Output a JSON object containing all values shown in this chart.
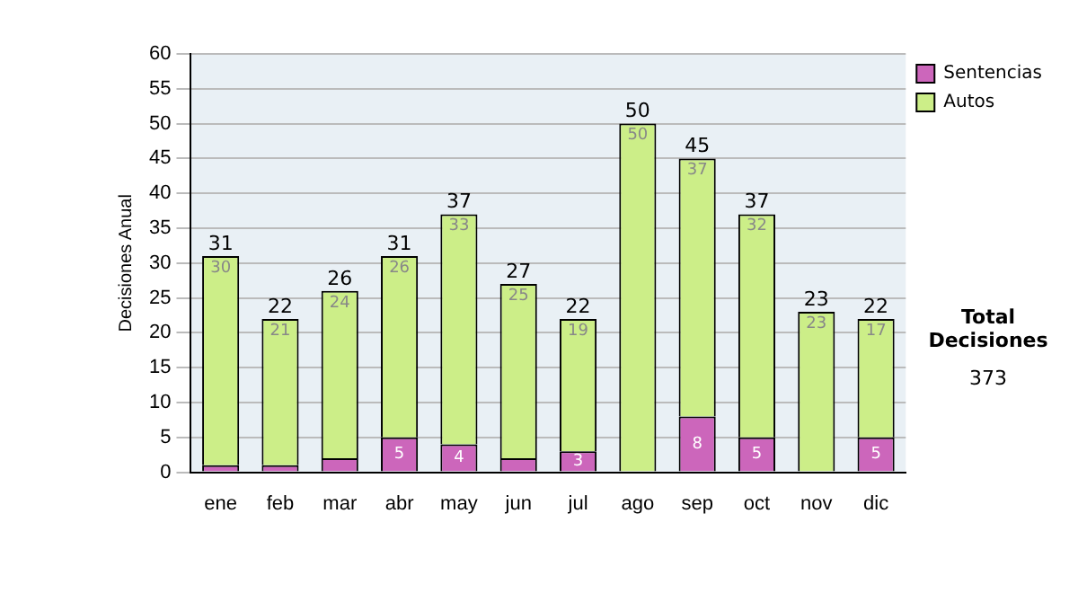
{
  "chart_data": {
    "type": "bar",
    "stacked": true,
    "ylabel": "Decisiones Anual",
    "categories": [
      "ene",
      "feb",
      "mar",
      "abr",
      "may",
      "jun",
      "jul",
      "ago",
      "sep",
      "oct",
      "nov",
      "dic"
    ],
    "series": [
      {
        "name": "Sentencias",
        "color": "#cc66bb",
        "values": [
          1,
          1,
          2,
          5,
          4,
          2,
          3,
          0,
          8,
          5,
          0,
          5
        ],
        "value_labels": [
          null,
          null,
          null,
          "5",
          "4",
          null,
          "3",
          null,
          "8",
          "5",
          null,
          "5"
        ]
      },
      {
        "name": "Autos",
        "color": "#ccee88",
        "values": [
          30,
          21,
          24,
          26,
          33,
          25,
          19,
          50,
          37,
          32,
          23,
          17
        ],
        "value_labels": [
          "30",
          "21",
          "24",
          "26",
          "33",
          "25",
          "19",
          "50",
          "37",
          "32",
          "23",
          "17"
        ]
      }
    ],
    "totals": [
      "31",
      "22",
      "26",
      "31",
      "37",
      "27",
      "22",
      "50",
      "45",
      "37",
      "23",
      "22"
    ],
    "ylim": [
      0,
      60
    ],
    "yticks": [
      0,
      5,
      10,
      15,
      20,
      25,
      30,
      35,
      40,
      45,
      50,
      55,
      60
    ],
    "grid": "y",
    "legend": "right",
    "annotations": [
      "Total Decisiones",
      "373"
    ]
  }
}
